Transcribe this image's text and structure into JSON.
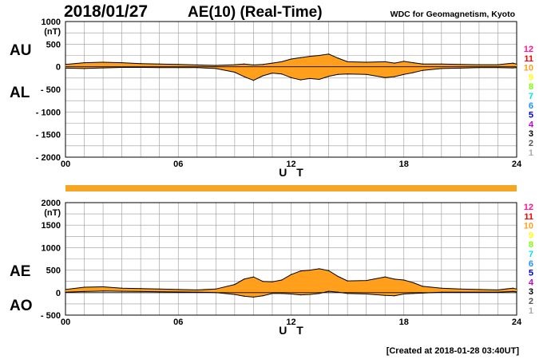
{
  "title_date": "2018/01/27",
  "title_main": "AE(10) (Real-Time)",
  "source": "WDC for Geomagnetism, Kyoto",
  "created": "[Created at 2018-01-28 03:40UT]",
  "colors": {
    "fill": "#ff9f1c",
    "bar": "#f5a623",
    "grid": "#999999"
  },
  "legend": [
    {
      "label": "12",
      "color": "#ff1493"
    },
    {
      "label": "11",
      "color": "#ff0000"
    },
    {
      "label": "10",
      "color": "#ff9f1c"
    },
    {
      "label": "9",
      "color": "#ffff00"
    },
    {
      "label": "8",
      "color": "#7fff00"
    },
    {
      "label": "7",
      "color": "#00e5e5"
    },
    {
      "label": "6",
      "color": "#1e90ff"
    },
    {
      "label": "5",
      "color": "#0000cd"
    },
    {
      "label": "4",
      "color": "#cc00cc"
    },
    {
      "label": "3",
      "color": "#000000"
    },
    {
      "label": "2",
      "color": "#555555"
    },
    {
      "label": "1",
      "color": "#aaaaaa"
    }
  ],
  "chart_data": [
    {
      "type": "area",
      "id": "top",
      "title": "AU / AL",
      "xlabel": "U T",
      "ylabel": "(nT)",
      "label_upper": "AU",
      "label_lower": "AL",
      "xlim": [
        0,
        24
      ],
      "ylim": [
        -2000,
        1000
      ],
      "xticks": [
        "00",
        "06",
        "12",
        "18",
        "24"
      ],
      "yticks": [
        "1000",
        "500",
        "0",
        "- 500",
        "- 1000",
        "- 1500",
        "- 2000"
      ],
      "x": [
        0,
        1,
        2,
        3,
        4,
        5,
        6,
        7,
        8,
        9,
        9.5,
        10,
        10.5,
        11,
        11.5,
        12,
        12.5,
        13,
        13.5,
        14,
        14.5,
        15,
        16,
        17,
        17.5,
        18,
        18.5,
        19,
        20,
        21,
        22,
        23,
        23.8,
        24
      ],
      "series": [
        {
          "name": "AU",
          "values": [
            50,
            90,
            100,
            90,
            70,
            60,
            50,
            40,
            30,
            45,
            60,
            40,
            50,
            80,
            110,
            170,
            200,
            230,
            250,
            280,
            190,
            110,
            100,
            110,
            80,
            120,
            90,
            60,
            60,
            50,
            45,
            45,
            80,
            60
          ]
        },
        {
          "name": "AL",
          "values": [
            -30,
            -40,
            -25,
            -15,
            -15,
            -20,
            -20,
            -20,
            -40,
            -120,
            -220,
            -300,
            -200,
            -140,
            -160,
            -240,
            -290,
            -260,
            -280,
            -210,
            -170,
            -160,
            -170,
            -240,
            -220,
            -170,
            -130,
            -80,
            -40,
            -30,
            -20,
            -20,
            -25,
            -20
          ]
        }
      ]
    },
    {
      "type": "area",
      "id": "bottom",
      "title": "AE / AO",
      "xlabel": "U T",
      "ylabel": "(nT)",
      "label_upper": "AE",
      "label_lower": "AO",
      "xlim": [
        0,
        24
      ],
      "ylim": [
        -500,
        2000
      ],
      "xticks": [
        "00",
        "06",
        "12",
        "18",
        "24"
      ],
      "yticks": [
        "2000",
        "1500",
        "1000",
        "500",
        "0",
        "- 500"
      ],
      "x": [
        0,
        1,
        2,
        3,
        4,
        5,
        6,
        7,
        8,
        9,
        9.5,
        10,
        10.5,
        11,
        11.5,
        12,
        12.5,
        13,
        13.5,
        14,
        14.5,
        15,
        16,
        17,
        17.5,
        18,
        18.5,
        19,
        20,
        21,
        22,
        23,
        23.8,
        24
      ],
      "series": [
        {
          "name": "AE",
          "values": [
            70,
            120,
            130,
            100,
            90,
            80,
            70,
            60,
            80,
            180,
            300,
            350,
            250,
            240,
            280,
            400,
            480,
            500,
            530,
            490,
            360,
            260,
            270,
            350,
            300,
            280,
            220,
            140,
            100,
            80,
            70,
            60,
            100,
            80
          ]
        },
        {
          "name": "AO",
          "values": [
            10,
            25,
            35,
            30,
            25,
            20,
            15,
            10,
            0,
            -40,
            -80,
            -100,
            -70,
            -20,
            -20,
            -30,
            -50,
            -40,
            -20,
            30,
            10,
            -20,
            -30,
            -60,
            -70,
            -30,
            -20,
            -10,
            10,
            10,
            10,
            10,
            25,
            20
          ]
        }
      ]
    }
  ]
}
